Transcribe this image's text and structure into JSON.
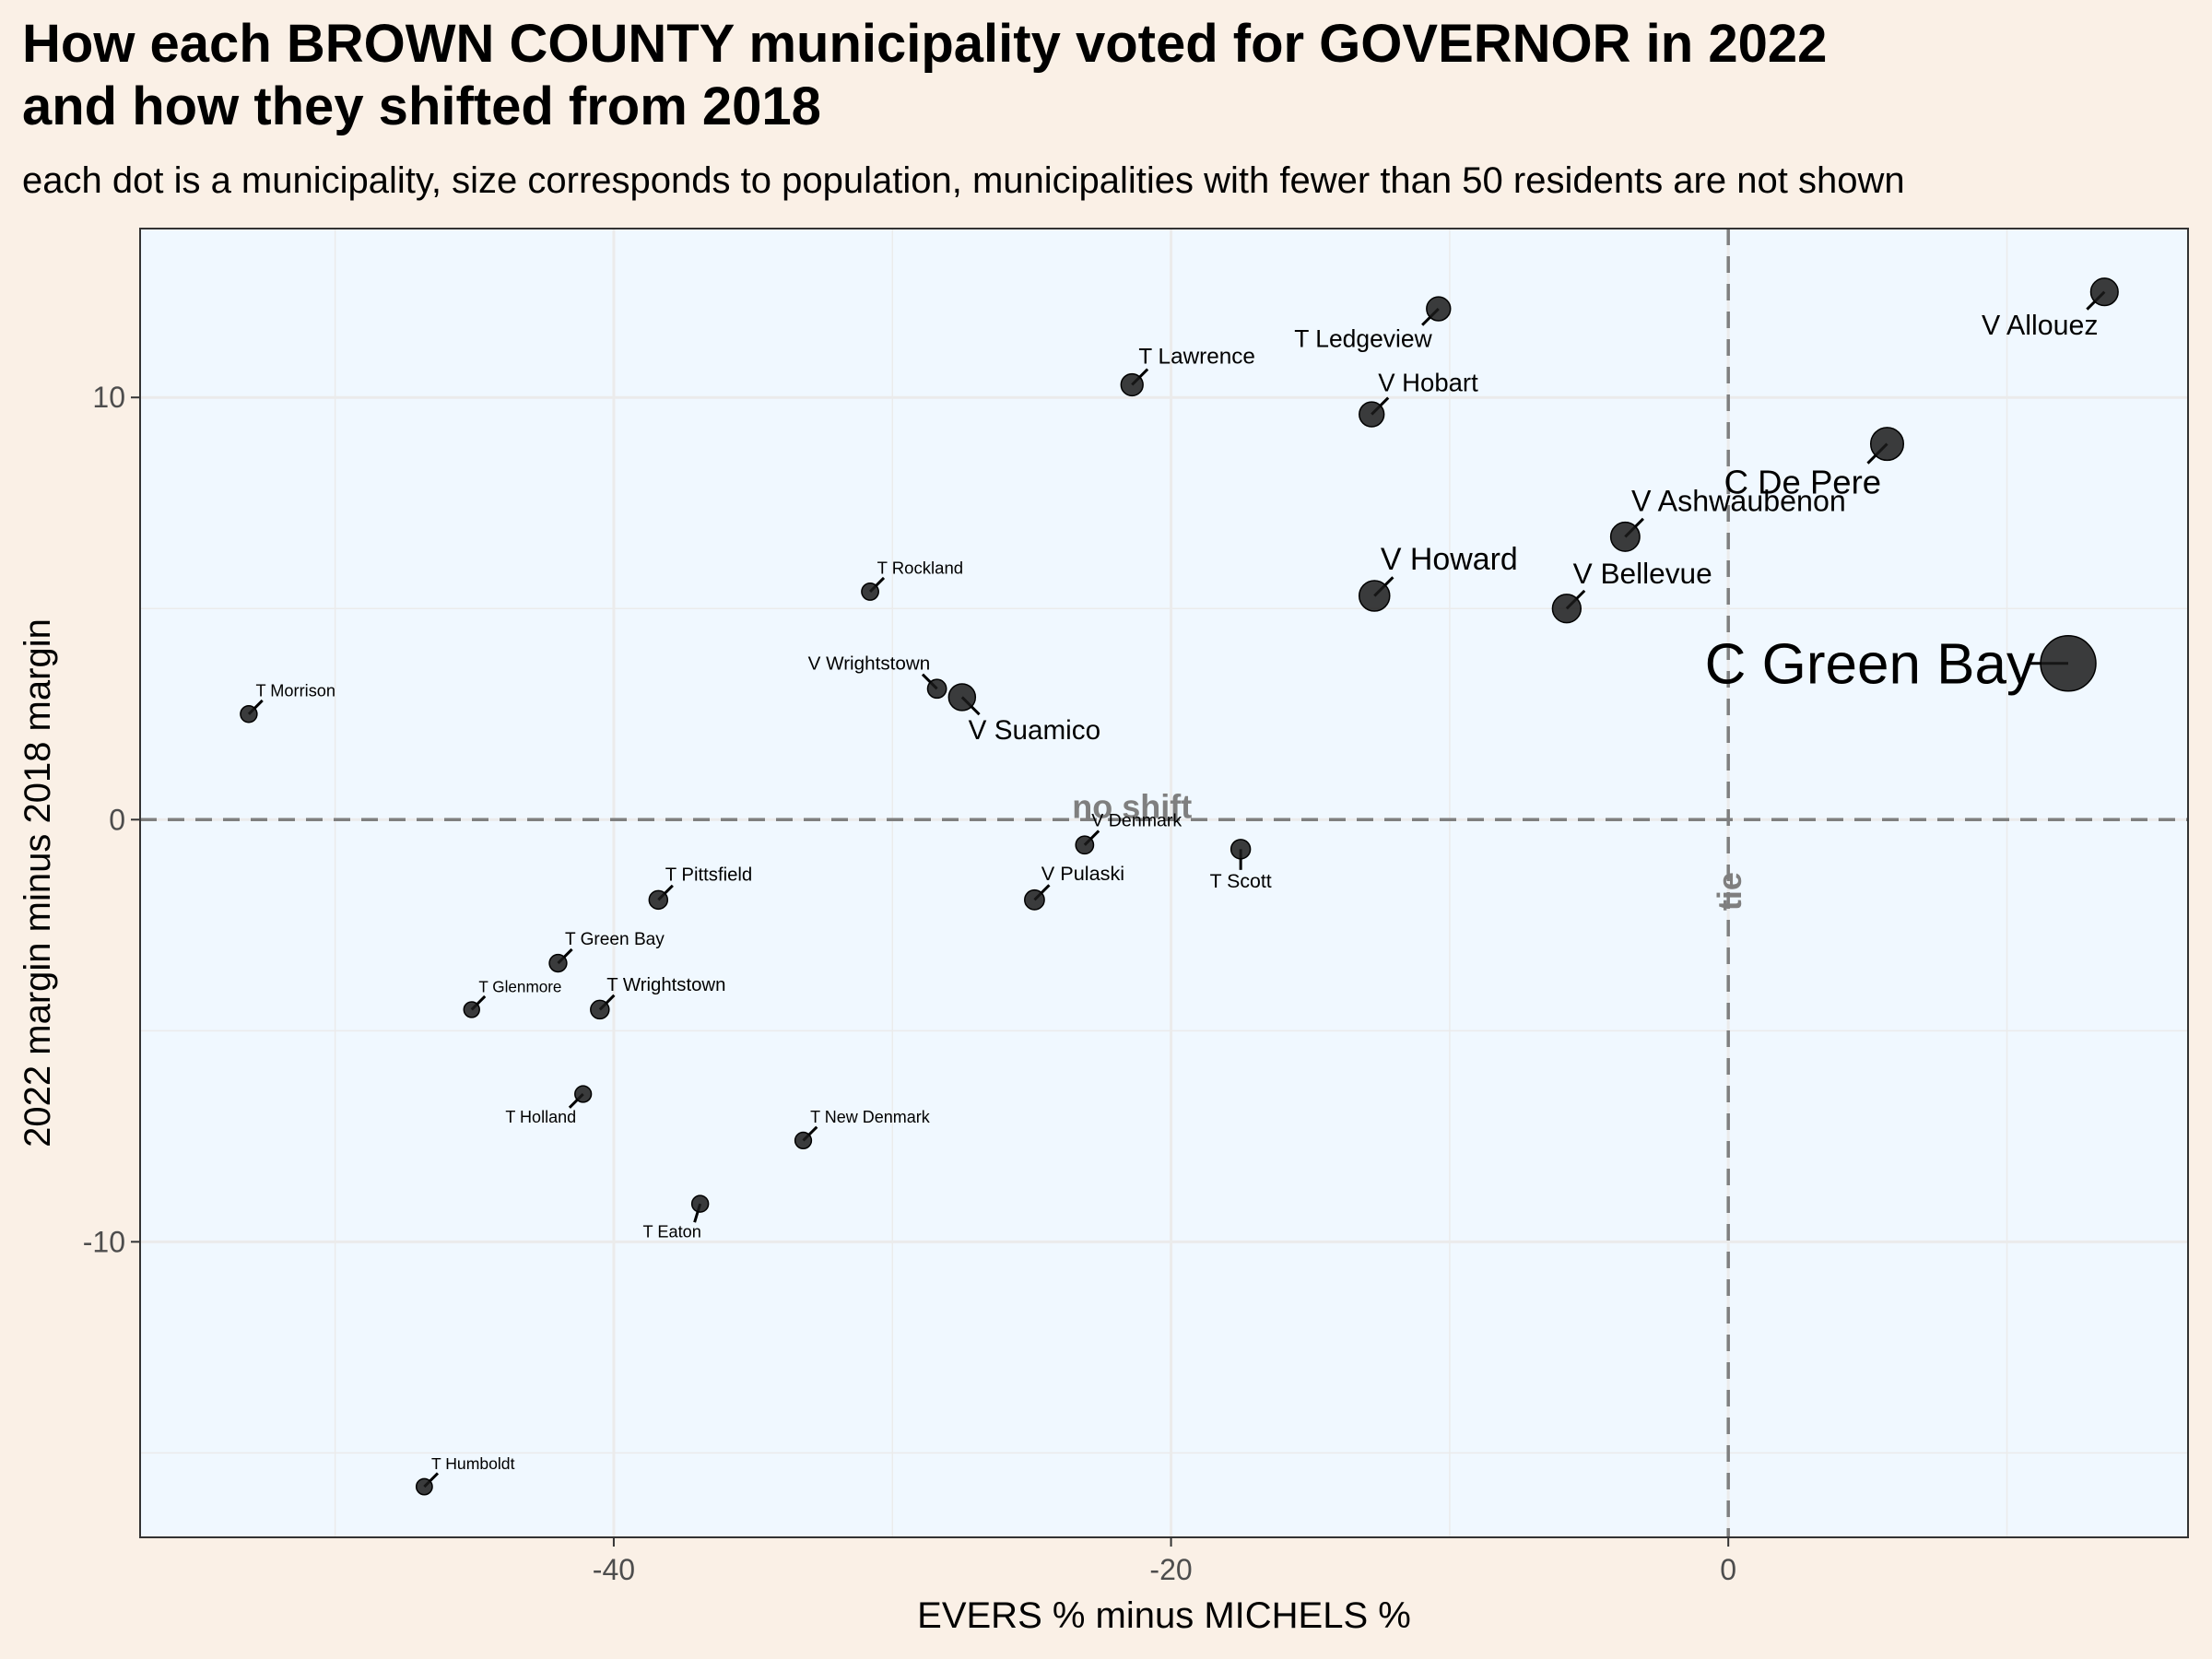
{
  "title_line1": "How each BROWN COUNTY municipality voted for GOVERNOR in 2022",
  "title_line2": "and how they shifted from 2018",
  "subtitle": "each dot is a municipality, size corresponds to population, municipalities with fewer than 50 residents are not shown",
  "colors": {
    "page_background": "#faf0e6",
    "panel_background": "#f0f8ff",
    "grid": "#ebebeb",
    "point": "#1a1a1a",
    "reference_line": "#7f7f7f",
    "reference_label": "#7f7f7f"
  },
  "chart_data": {
    "type": "scatter",
    "xlabel": "EVERS % minus MICHELS %",
    "ylabel": "2022 margin minus 2018 margin",
    "xlim": [
      -57,
      16.5
    ],
    "ylim": [
      -17,
      14
    ],
    "x_ticks": [
      -40,
      -20,
      0
    ],
    "y_ticks": [
      -10,
      0,
      10
    ],
    "x_minor_gridlines": [
      -50,
      -30,
      -10,
      10
    ],
    "y_minor_gridlines": [
      -15,
      -5,
      5
    ],
    "grid": true,
    "reference_lines": [
      {
        "axis": "y",
        "value": 0,
        "label": "no shift"
      },
      {
        "axis": "x",
        "value": 0,
        "label": "tie"
      }
    ],
    "points": [
      {
        "label": "C Green Bay",
        "x": 12.2,
        "y": 3.7,
        "size": 104000
      },
      {
        "label": "V Allouez",
        "x": 13.5,
        "y": 12.5,
        "size": 14000
      },
      {
        "label": "C De Pere",
        "x": 5.7,
        "y": 8.9,
        "size": 25000
      },
      {
        "label": "V Ashwaubenon",
        "x": -3.7,
        "y": 6.7,
        "size": 17000
      },
      {
        "label": "V Bellevue",
        "x": -5.8,
        "y": 5.0,
        "size": 16000
      },
      {
        "label": "V Howard",
        "x": -12.7,
        "y": 5.3,
        "size": 20000
      },
      {
        "label": "V Hobart",
        "x": -12.8,
        "y": 9.6,
        "size": 10000
      },
      {
        "label": "T Ledgeview",
        "x": -10.4,
        "y": 12.1,
        "size": 8700
      },
      {
        "label": "T Lawrence",
        "x": -21.4,
        "y": 10.3,
        "size": 6300
      },
      {
        "label": "T Rockland",
        "x": -30.8,
        "y": 5.4,
        "size": 1800
      },
      {
        "label": "V Wrightstown",
        "x": -28.4,
        "y": 3.1,
        "size": 3100
      },
      {
        "label": "V Suamico",
        "x": -27.5,
        "y": 2.9,
        "size": 13000
      },
      {
        "label": "T Morrison",
        "x": -53.1,
        "y": 2.5,
        "size": 1600
      },
      {
        "label": "V Denmark",
        "x": -23.1,
        "y": -0.6,
        "size": 2400
      },
      {
        "label": "T Scott",
        "x": -17.5,
        "y": -0.7,
        "size": 3600
      },
      {
        "label": "V Pulaski",
        "x": -24.9,
        "y": -1.9,
        "size": 3900
      },
      {
        "label": "T Pittsfield",
        "x": -38.4,
        "y": -1.9,
        "size": 2900
      },
      {
        "label": "T Green Bay",
        "x": -42.0,
        "y": -3.4,
        "size": 2100
      },
      {
        "label": "T Glenmore",
        "x": -45.1,
        "y": -4.5,
        "size": 1100
      },
      {
        "label": "T Wrightstown",
        "x": -40.5,
        "y": -4.5,
        "size": 2900
      },
      {
        "label": "T Holland",
        "x": -41.1,
        "y": -6.5,
        "size": 1500
      },
      {
        "label": "T New Denmark",
        "x": -33.2,
        "y": -7.6,
        "size": 1500
      },
      {
        "label": "T Eaton",
        "x": -36.9,
        "y": -9.1,
        "size": 1600
      },
      {
        "label": "T Humboldt",
        "x": -46.8,
        "y": -15.8,
        "size": 1300
      }
    ]
  }
}
